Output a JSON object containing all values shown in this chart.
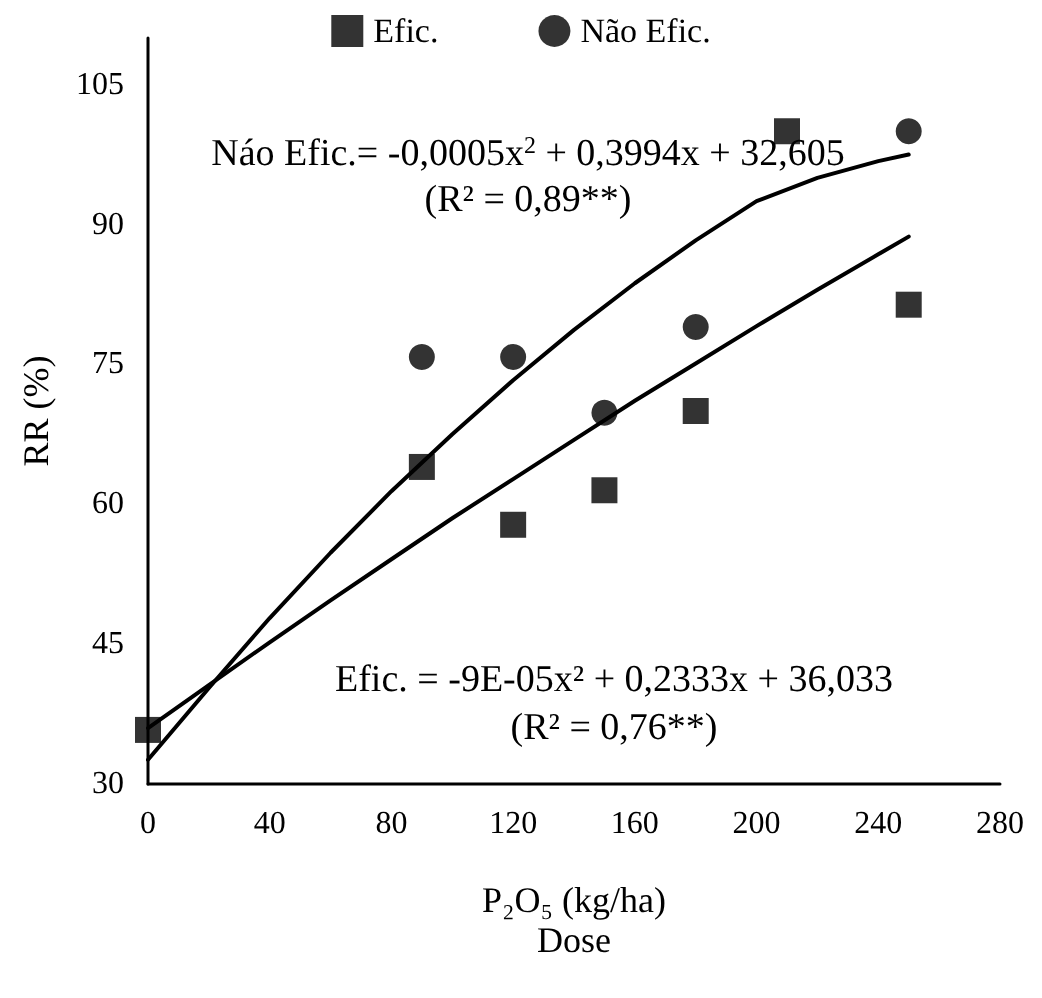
{
  "chart_data": {
    "type": "scatter",
    "xlabel": "P₂O₅ (kg/ha)\nDose",
    "ylabel": "RR (%)",
    "xlim": [
      0,
      280
    ],
    "xticks": [
      0,
      40,
      80,
      120,
      160,
      200,
      240,
      280
    ],
    "ylim": [
      30,
      110
    ],
    "yticks": [
      30,
      45,
      60,
      75,
      90,
      105
    ],
    "grid": false,
    "legend": "top",
    "annotations": [
      "Náo Efic.= -0,0005x$^{2}$ + 0,3994x + 32,605",
      "(R² = 0,89**)",
      "Efic. = -9E-05x² + 0,2333x + 36,033",
      "(R² = 0,76**)"
    ],
    "series": [
      {
        "name": "Efic.",
        "marker": "square",
        "color": "#000000",
        "x": [
          0,
          90,
          120,
          150,
          180,
          210,
          250
        ],
        "values": [
          35.8,
          64.0,
          57.8,
          61.5,
          70.0,
          100.0,
          81.4
        ]
      },
      {
        "name": "Não Efic.",
        "marker": "circle",
        "color": "#000000",
        "x": [
          90,
          120,
          150,
          180,
          250
        ],
        "values": [
          75.8,
          75.8,
          69.8,
          79.0,
          100.0
        ]
      },
      {
        "type": "line",
        "marker": "none",
        "line_style": "solid",
        "color": "#000000",
        "x": [
          0,
          20,
          40,
          60,
          80,
          100,
          120,
          140,
          160,
          180,
          200,
          220,
          240,
          250
        ],
        "values": [
          32.6,
          40.3,
          47.8,
          54.8,
          61.4,
          67.5,
          73.3,
          78.7,
          83.7,
          88.3,
          92.5,
          95.0,
          96.8,
          97.5
        ]
      },
      {
        "type": "line",
        "marker": "none",
        "line_style": "solid",
        "color": "#000000",
        "x": [
          0,
          20,
          40,
          60,
          80,
          100,
          120,
          140,
          160,
          180,
          200,
          220,
          240,
          250
        ],
        "values": [
          36.0,
          40.6,
          45.2,
          49.7,
          54.1,
          58.5,
          62.7,
          66.9,
          71.1,
          75.1,
          79.1,
          83.0,
          86.8,
          88.7
        ]
      }
    ]
  }
}
